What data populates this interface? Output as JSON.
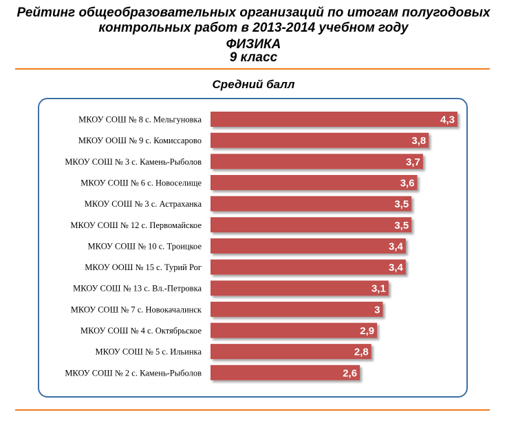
{
  "header": {
    "line1": "Рейтинг общеобразовательных  организаций по итогам полугодовых",
    "line2": "контрольных работ в 2013-2014 учебном году",
    "subject": "ФИЗИКА",
    "grade": "9 класс"
  },
  "colors": {
    "bar": "#c0504d",
    "frame": "#3d6fa3",
    "rule": "#f07c1a"
  },
  "chart_data": {
    "type": "bar",
    "orientation": "horizontal",
    "title": "Средний балл",
    "categories": [
      "МКОУ СОШ № 8 с. Мельгуновка",
      "МКОУ ООШ № 9 с. Комиссарово",
      "МКОУ СОШ № 3 с. Камень-Рыболов",
      "МКОУ СОШ № 6 с. Новоселище",
      "МКОУ СОШ № 3 с. Астраханка",
      "МКОУ СОШ № 12 с. Первомайское",
      "МКОУ СОШ № 10 с. Троицкое",
      "МКОУ ООШ № 15 с. Турий Рог",
      "МКОУ СОШ № 13 с. Вл.-Петровка",
      "МКОУ СОШ № 7 с. Новокачалинск",
      "МКОУ СОШ № 4 с. Октябрьское",
      "МКОУ СОШ № 5 с. Ильинка",
      "МКОУ СОШ № 2 с. Камень-Рыболов"
    ],
    "values": [
      4.3,
      3.8,
      3.7,
      3.6,
      3.5,
      3.5,
      3.4,
      3.4,
      3.1,
      3,
      2.9,
      2.8,
      2.6
    ],
    "value_labels": [
      "4,3",
      "3,8",
      "3,7",
      "3,6",
      "3,5",
      "3,5",
      "3,4",
      "3,4",
      "3,1",
      "3",
      "2,9",
      "2,8",
      "2,6"
    ],
    "xlim": [
      0,
      4.3
    ],
    "grid": false,
    "legend": "none"
  }
}
